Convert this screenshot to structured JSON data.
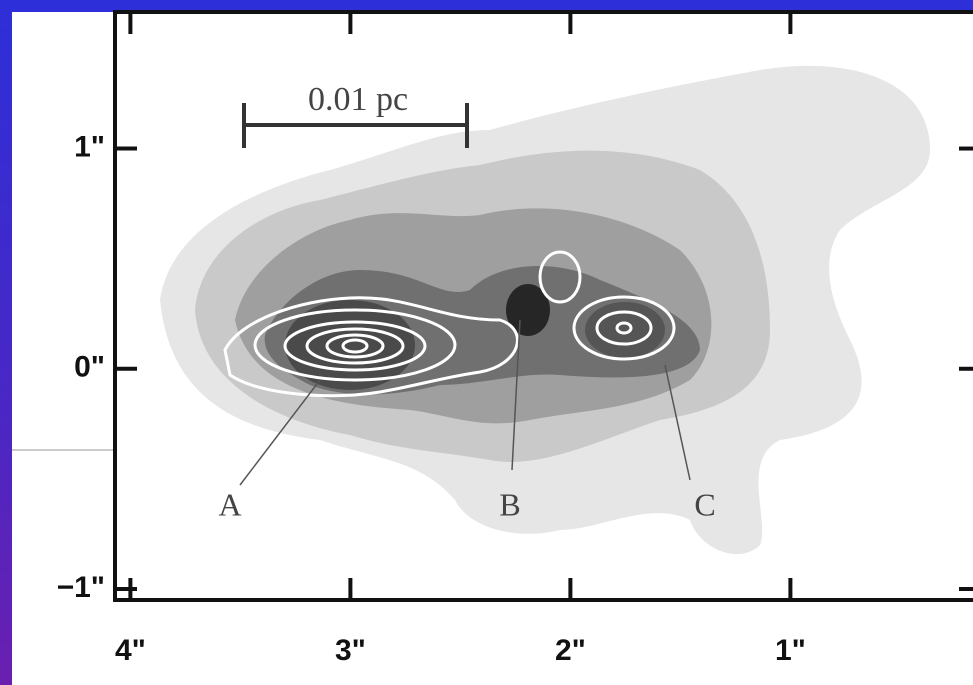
{
  "chart_data": {
    "type": "contour",
    "xlim": [
      4.07,
      0.17
    ],
    "ylim": [
      -1.05,
      1.62
    ],
    "xticks": [
      {
        "value": 4,
        "label": "4\""
      },
      {
        "value": 3,
        "label": "3\""
      },
      {
        "value": 2,
        "label": "2\""
      },
      {
        "value": 1,
        "label": "1\""
      }
    ],
    "yticks": [
      {
        "value": 1,
        "label": "1\""
      },
      {
        "value": 0,
        "label": "0\""
      },
      {
        "value": -1,
        "label": "−1\""
      }
    ],
    "scale_bar_label": "0.01 pc",
    "sources": [
      "A",
      "B",
      "C"
    ]
  }
}
